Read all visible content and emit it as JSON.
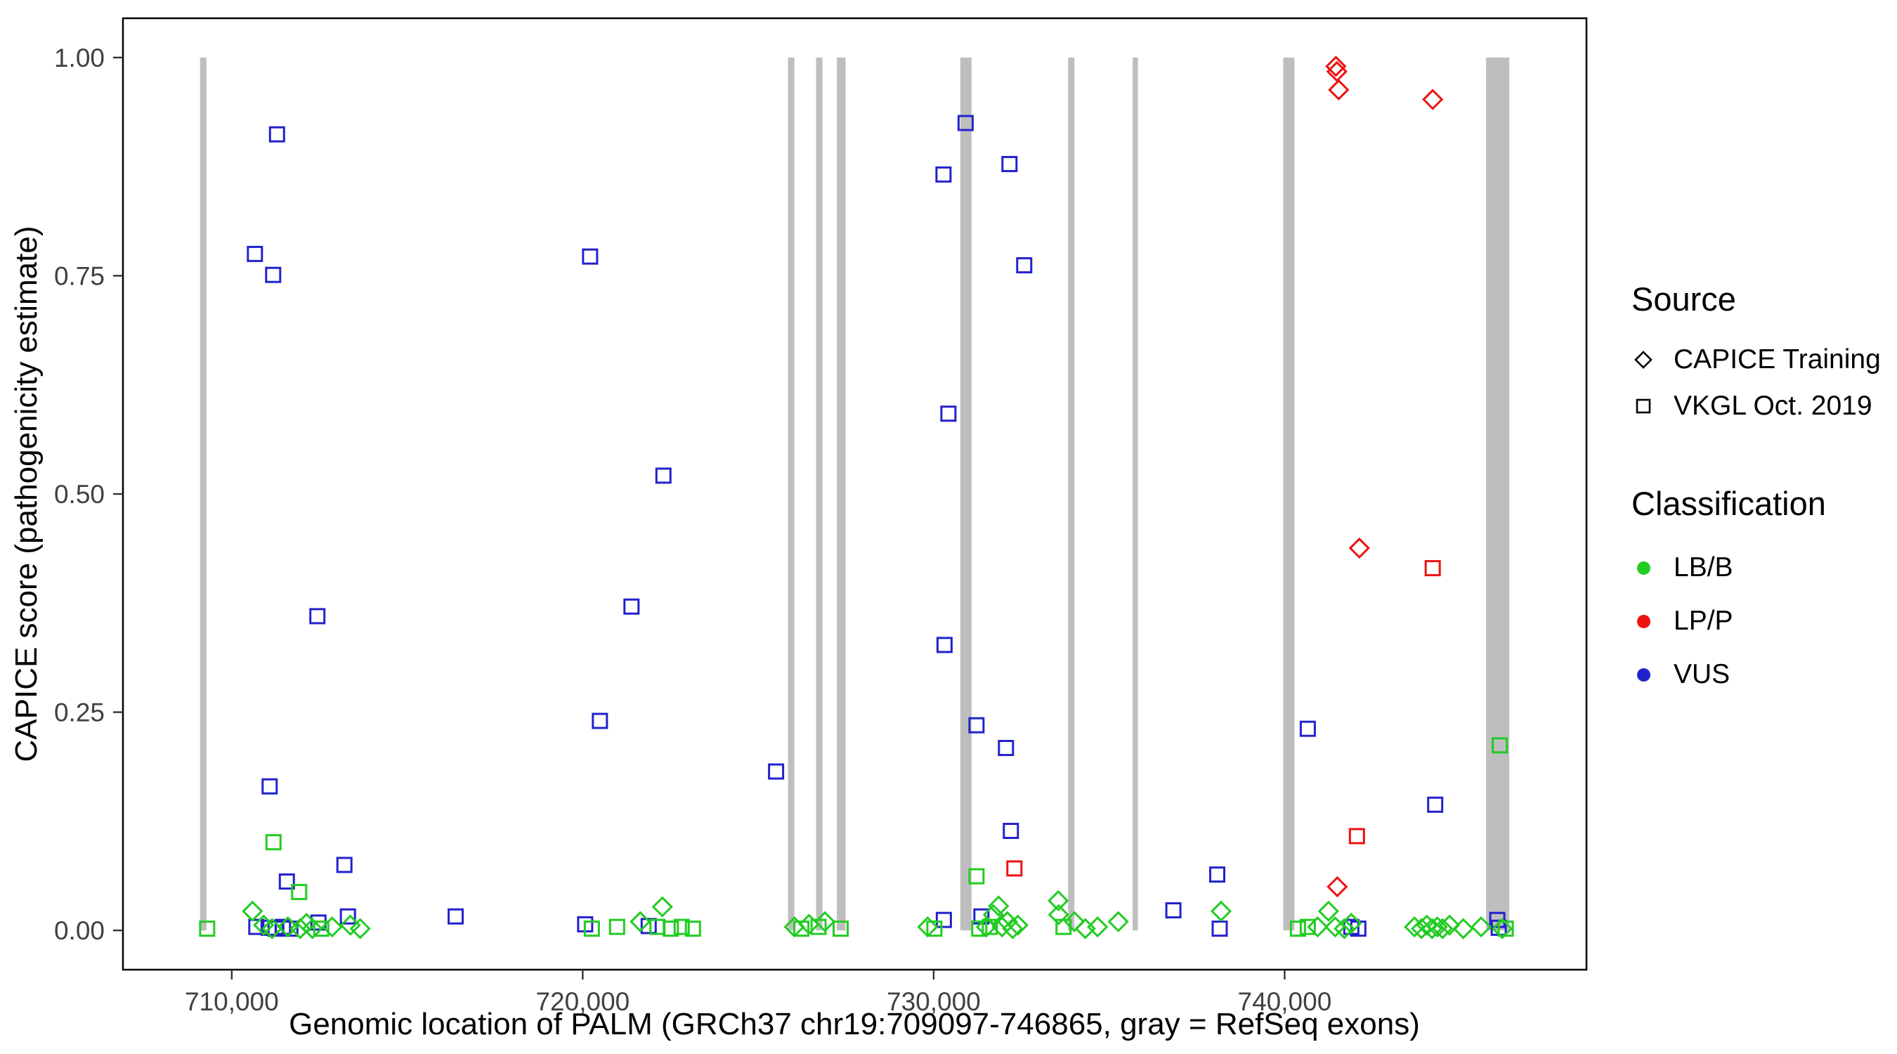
{
  "figure": {
    "background": "#FFFFFF",
    "panel_border_color": "#000000"
  },
  "chart_data": {
    "type": "scatter",
    "title": "",
    "xlabel": "Genomic location of PALM (GRCh37 chr19:709097-746865, gray = RefSeq exons)",
    "ylabel": "CAPICE score (pathogenicity estimate)",
    "xlim": [
      706900,
      748600
    ],
    "ylim": [
      -0.045,
      1.045
    ],
    "grid": "off",
    "legend_position": "right",
    "x_ticks": [
      {
        "value": 710000,
        "label": "710,000"
      },
      {
        "value": 720000,
        "label": "720,000"
      },
      {
        "value": 730000,
        "label": "730,000"
      },
      {
        "value": 740000,
        "label": "740,000"
      }
    ],
    "y_ticks": [
      {
        "value": 0.0,
        "label": "0.00"
      },
      {
        "value": 0.25,
        "label": "0.25"
      },
      {
        "value": 0.5,
        "label": "0.50"
      },
      {
        "value": 0.75,
        "label": "0.75"
      },
      {
        "value": 1.0,
        "label": "1.00"
      }
    ],
    "exon_color": "#BEBEBE",
    "exons": [
      {
        "start": 709097,
        "end": 709280
      },
      {
        "start": 725850,
        "end": 726030
      },
      {
        "start": 726650,
        "end": 726830
      },
      {
        "start": 727240,
        "end": 727490
      },
      {
        "start": 730760,
        "end": 731080
      },
      {
        "start": 733830,
        "end": 734010
      },
      {
        "start": 735670,
        "end": 735820
      },
      {
        "start": 739960,
        "end": 740280
      },
      {
        "start": 745740,
        "end": 746400
      }
    ],
    "classification_colors": {
      "LB/B": "#22CC22",
      "LP/P": "#EE1111",
      "VUS": "#2222CC"
    },
    "point_format": [
      "x",
      "y",
      "shape: d=diamond (CAPICE Training), s=square (VKGL Oct. 2019)",
      "classification"
    ],
    "points": [
      [
        710660,
        0.775,
        "s",
        "VUS"
      ],
      [
        711290,
        0.912,
        "s",
        "VUS"
      ],
      [
        711180,
        0.751,
        "s",
        "VUS"
      ],
      [
        711080,
        0.165,
        "s",
        "VUS"
      ],
      [
        711570,
        0.056,
        "s",
        "VUS"
      ],
      [
        712440,
        0.36,
        "s",
        "VUS"
      ],
      [
        713210,
        0.075,
        "s",
        "VUS"
      ],
      [
        716380,
        0.016,
        "s",
        "VUS"
      ],
      [
        720210,
        0.772,
        "s",
        "VUS"
      ],
      [
        720490,
        0.24,
        "s",
        "VUS"
      ],
      [
        721390,
        0.371,
        "s",
        "VUS"
      ],
      [
        722300,
        0.521,
        "s",
        "VUS"
      ],
      [
        725510,
        0.182,
        "s",
        "VUS"
      ],
      [
        730280,
        0.866,
        "s",
        "VUS"
      ],
      [
        730420,
        0.592,
        "s",
        "VUS"
      ],
      [
        730310,
        0.327,
        "s",
        "VUS"
      ],
      [
        730910,
        0.925,
        "s",
        "VUS"
      ],
      [
        731220,
        0.235,
        "s",
        "VUS"
      ],
      [
        732160,
        0.878,
        "s",
        "VUS"
      ],
      [
        732060,
        0.209,
        "s",
        "VUS"
      ],
      [
        732200,
        0.114,
        "s",
        "VUS"
      ],
      [
        732580,
        0.762,
        "s",
        "VUS"
      ],
      [
        736830,
        0.023,
        "s",
        "VUS"
      ],
      [
        738080,
        0.064,
        "s",
        "VUS"
      ],
      [
        740660,
        0.231,
        "s",
        "VUS"
      ],
      [
        744290,
        0.144,
        "s",
        "VUS"
      ],
      [
        746060,
        0.012,
        "s",
        "VUS"
      ],
      [
        710700,
        0.004,
        "s",
        "VUS"
      ],
      [
        711050,
        0.003,
        "s",
        "VUS"
      ],
      [
        711250,
        0.002,
        "s",
        "VUS"
      ],
      [
        711460,
        0.004,
        "s",
        "VUS"
      ],
      [
        711670,
        0.002,
        "s",
        "VUS"
      ],
      [
        712470,
        0.009,
        "s",
        "VUS"
      ],
      [
        713310,
        0.016,
        "s",
        "VUS"
      ],
      [
        720070,
        0.007,
        "s",
        "VUS"
      ],
      [
        721880,
        0.005,
        "s",
        "VUS"
      ],
      [
        730290,
        0.012,
        "s",
        "VUS"
      ],
      [
        731360,
        0.016,
        "s",
        "VUS"
      ],
      [
        738150,
        0.002,
        "s",
        "VUS"
      ],
      [
        741900,
        0.004,
        "s",
        "VUS"
      ],
      [
        742100,
        0.002,
        "s",
        "VUS"
      ],
      [
        746100,
        0.003,
        "s",
        "VUS"
      ],
      [
        741460,
        0.99,
        "d",
        "LP/P"
      ],
      [
        741490,
        0.984,
        "d",
        "LP/P"
      ],
      [
        741540,
        0.963,
        "d",
        "LP/P"
      ],
      [
        742130,
        0.438,
        "d",
        "LP/P"
      ],
      [
        741500,
        0.05,
        "d",
        "LP/P"
      ],
      [
        744220,
        0.952,
        "d",
        "LP/P"
      ],
      [
        732300,
        0.071,
        "s",
        "LP/P"
      ],
      [
        742060,
        0.108,
        "s",
        "LP/P"
      ],
      [
        744220,
        0.415,
        "s",
        "LP/P"
      ],
      [
        710590,
        0.022,
        "d",
        "LB/B"
      ],
      [
        710910,
        0.006,
        "d",
        "LB/B"
      ],
      [
        711150,
        0.002,
        "d",
        "LB/B"
      ],
      [
        711600,
        0.004,
        "d",
        "LB/B"
      ],
      [
        711950,
        0.002,
        "d",
        "LB/B"
      ],
      [
        712130,
        0.008,
        "d",
        "LB/B"
      ],
      [
        712300,
        0.002,
        "d",
        "LB/B"
      ],
      [
        712860,
        0.004,
        "d",
        "LB/B"
      ],
      [
        713380,
        0.006,
        "d",
        "LB/B"
      ],
      [
        713660,
        0.002,
        "d",
        "LB/B"
      ],
      [
        721640,
        0.01,
        "d",
        "LB/B"
      ],
      [
        722270,
        0.027,
        "d",
        "LB/B"
      ],
      [
        726030,
        0.004,
        "d",
        "LB/B"
      ],
      [
        726450,
        0.007,
        "d",
        "LB/B"
      ],
      [
        726900,
        0.01,
        "d",
        "LB/B"
      ],
      [
        729830,
        0.004,
        "d",
        "LB/B"
      ],
      [
        731500,
        0.004,
        "d",
        "LB/B"
      ],
      [
        731700,
        0.018,
        "d",
        "LB/B"
      ],
      [
        731850,
        0.028,
        "d",
        "LB/B"
      ],
      [
        731950,
        0.004,
        "d",
        "LB/B"
      ],
      [
        732100,
        0.01,
        "d",
        "LB/B"
      ],
      [
        732250,
        0.002,
        "d",
        "LB/B"
      ],
      [
        732400,
        0.006,
        "d",
        "LB/B"
      ],
      [
        733550,
        0.034,
        "d",
        "LB/B"
      ],
      [
        733560,
        0.018,
        "d",
        "LB/B"
      ],
      [
        734010,
        0.01,
        "d",
        "LB/B"
      ],
      [
        734320,
        0.002,
        "d",
        "LB/B"
      ],
      [
        734670,
        0.004,
        "d",
        "LB/B"
      ],
      [
        735260,
        0.01,
        "d",
        "LB/B"
      ],
      [
        738190,
        0.022,
        "d",
        "LB/B"
      ],
      [
        740940,
        0.004,
        "d",
        "LB/B"
      ],
      [
        741250,
        0.022,
        "d",
        "LB/B"
      ],
      [
        741440,
        0.004,
        "d",
        "LB/B"
      ],
      [
        741700,
        0.002,
        "d",
        "LB/B"
      ],
      [
        741900,
        0.008,
        "d",
        "LB/B"
      ],
      [
        743700,
        0.004,
        "d",
        "LB/B"
      ],
      [
        743900,
        0.002,
        "d",
        "LB/B"
      ],
      [
        744050,
        0.006,
        "d",
        "LB/B"
      ],
      [
        744200,
        0.002,
        "d",
        "LB/B"
      ],
      [
        744350,
        0.004,
        "d",
        "LB/B"
      ],
      [
        744500,
        0.002,
        "d",
        "LB/B"
      ],
      [
        744700,
        0.006,
        "d",
        "LB/B"
      ],
      [
        745090,
        0.002,
        "d",
        "LB/B"
      ],
      [
        745600,
        0.004,
        "d",
        "LB/B"
      ],
      [
        746200,
        0.002,
        "d",
        "LB/B"
      ],
      [
        709300,
        0.002,
        "s",
        "LB/B"
      ],
      [
        711190,
        0.101,
        "s",
        "LB/B"
      ],
      [
        711920,
        0.044,
        "s",
        "LB/B"
      ],
      [
        712550,
        0.002,
        "s",
        "LB/B"
      ],
      [
        720260,
        0.002,
        "s",
        "LB/B"
      ],
      [
        720980,
        0.004,
        "s",
        "LB/B"
      ],
      [
        722130,
        0.004,
        "s",
        "LB/B"
      ],
      [
        722510,
        0.002,
        "s",
        "LB/B"
      ],
      [
        722820,
        0.004,
        "s",
        "LB/B"
      ],
      [
        723140,
        0.002,
        "s",
        "LB/B"
      ],
      [
        726230,
        0.002,
        "s",
        "LB/B"
      ],
      [
        726720,
        0.004,
        "s",
        "LB/B"
      ],
      [
        727350,
        0.002,
        "s",
        "LB/B"
      ],
      [
        730020,
        0.002,
        "s",
        "LB/B"
      ],
      [
        731220,
        0.062,
        "s",
        "LB/B"
      ],
      [
        731300,
        0.002,
        "s",
        "LB/B"
      ],
      [
        731600,
        0.004,
        "s",
        "LB/B"
      ],
      [
        733700,
        0.004,
        "s",
        "LB/B"
      ],
      [
        740380,
        0.002,
        "s",
        "LB/B"
      ],
      [
        740660,
        0.004,
        "s",
        "LB/B"
      ],
      [
        746130,
        0.212,
        "s",
        "LB/B"
      ],
      [
        746300,
        0.002,
        "s",
        "LB/B"
      ]
    ]
  },
  "legend": {
    "source": {
      "title": "Source",
      "items": [
        {
          "label": "CAPICE Training",
          "shape": "diamond"
        },
        {
          "label": "VKGL Oct. 2019",
          "shape": "square"
        }
      ]
    },
    "classification": {
      "title": "Classification",
      "items": [
        {
          "label": "LB/B",
          "color": "#22CC22"
        },
        {
          "label": "LP/P",
          "color": "#EE1111"
        },
        {
          "label": "VUS",
          "color": "#2222CC"
        }
      ]
    }
  }
}
